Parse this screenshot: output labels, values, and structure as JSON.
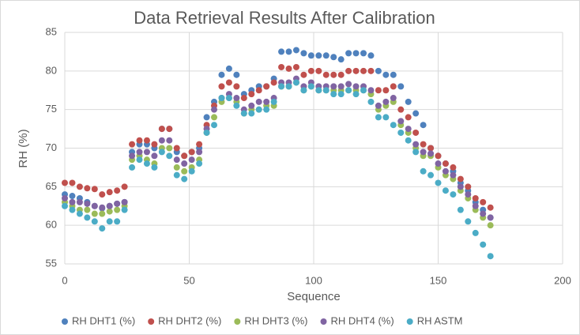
{
  "chart_data": {
    "type": "scatter",
    "title": "Data Retrieval Results After Calibration",
    "x_label": "Sequence",
    "y_label": "RH (%)",
    "xlim": [
      0,
      200
    ],
    "xticks": [
      0,
      50,
      100,
      150,
      200
    ],
    "ylim": [
      55,
      85
    ],
    "yticks": [
      55,
      60,
      65,
      70,
      75,
      80,
      85
    ],
    "grid": true,
    "legend": "bottom",
    "x": [
      0,
      3,
      6,
      9,
      12,
      15,
      18,
      21,
      24,
      27,
      30,
      33,
      36,
      39,
      42,
      45,
      48,
      51,
      54,
      57,
      60,
      63,
      66,
      69,
      72,
      75,
      78,
      81,
      84,
      87,
      90,
      93,
      96,
      99,
      102,
      105,
      108,
      111,
      114,
      117,
      120,
      123,
      126,
      129,
      132,
      135,
      138,
      141,
      144,
      147,
      150,
      153,
      156,
      159,
      162,
      165,
      168,
      171
    ],
    "series": [
      {
        "name": "RH DHT1 (%)",
        "color": "#4f81bd",
        "values": [
          64,
          63.8,
          63.5,
          63,
          62.5,
          62.2,
          62.5,
          62.8,
          63,
          69.5,
          70.5,
          70.5,
          70,
          72.5,
          72.5,
          69.5,
          69,
          69.5,
          70,
          74,
          76,
          79.5,
          80.3,
          79.5,
          77,
          77.5,
          78,
          78,
          79,
          82.5,
          82.5,
          82.7,
          82.3,
          82,
          82,
          82,
          81.8,
          81.5,
          82.3,
          82.3,
          82.3,
          82,
          80,
          79.5,
          79.5,
          78,
          76,
          74.5,
          73,
          70,
          69,
          68,
          67,
          65.5,
          64.5,
          63,
          62,
          61
        ]
      },
      {
        "name": "RH DHT2 (%)",
        "color": "#c0504d",
        "values": [
          65.5,
          65.5,
          65,
          64.8,
          64.7,
          64,
          64.3,
          64.5,
          65,
          70.5,
          71,
          71,
          70.5,
          72.5,
          72.5,
          70,
          69,
          69.5,
          70.5,
          73,
          75.5,
          78,
          78.5,
          78,
          76.5,
          77,
          77.5,
          78,
          78.5,
          80.5,
          80.3,
          80.5,
          79.5,
          80,
          80,
          79.5,
          79.5,
          79.5,
          80,
          80,
          80,
          80,
          77.5,
          77.5,
          78,
          75,
          74,
          72,
          70.5,
          70,
          69,
          68,
          67.5,
          66,
          65,
          63.5,
          63,
          62.3
        ]
      },
      {
        "name": "RH DHT3 (%)",
        "color": "#9bbb59",
        "values": [
          63,
          62.5,
          62,
          62,
          61.5,
          61.5,
          61.8,
          62,
          62.5,
          68.5,
          69,
          68.5,
          68,
          70,
          70,
          67.5,
          67,
          67.5,
          68.5,
          72,
          74,
          76,
          76.5,
          76,
          74.5,
          75,
          75,
          75.5,
          75.5,
          78,
          78,
          78.5,
          77.5,
          78,
          77.5,
          77.5,
          77.5,
          77.5,
          77.5,
          77.5,
          77.5,
          77,
          75,
          75.5,
          76,
          73,
          72,
          70,
          69,
          69,
          67.5,
          66.5,
          66,
          64.5,
          63.5,
          62,
          61,
          60
        ]
      },
      {
        "name": "RH DHT4 (%)",
        "color": "#8064a2",
        "values": [
          63.5,
          63,
          63,
          62.8,
          62.5,
          62.3,
          62.5,
          62.8,
          63,
          69,
          69.5,
          69.5,
          69,
          71,
          71,
          68.5,
          68,
          68.5,
          69.5,
          72.5,
          75,
          76.5,
          77,
          76.5,
          75,
          75.5,
          76,
          76,
          76.5,
          78.5,
          78.5,
          79,
          78,
          78.5,
          78,
          78,
          78,
          78,
          78.3,
          78,
          78,
          77.5,
          75.5,
          76,
          76.5,
          73.5,
          72.5,
          70.5,
          69.5,
          69.3,
          68,
          67,
          66.5,
          65,
          64,
          62.5,
          61.5,
          61
        ]
      },
      {
        "name": "RH ASTM",
        "color": "#4bacc6",
        "values": [
          62.5,
          62,
          61.5,
          61,
          60.5,
          59.6,
          60.5,
          60.5,
          62,
          67.5,
          68.5,
          68,
          67.5,
          69.5,
          69,
          66.5,
          66,
          67,
          68,
          72,
          73,
          76.5,
          76.5,
          75.5,
          74.5,
          74.5,
          75,
          75,
          76,
          78,
          78,
          78.5,
          77.5,
          78,
          77.5,
          77.5,
          77,
          77,
          77.5,
          77,
          77.5,
          76,
          74,
          74,
          73,
          72,
          71,
          69.5,
          67,
          66.5,
          65.5,
          64.5,
          64,
          62,
          60.5,
          59,
          57.5,
          56
        ]
      }
    ]
  }
}
